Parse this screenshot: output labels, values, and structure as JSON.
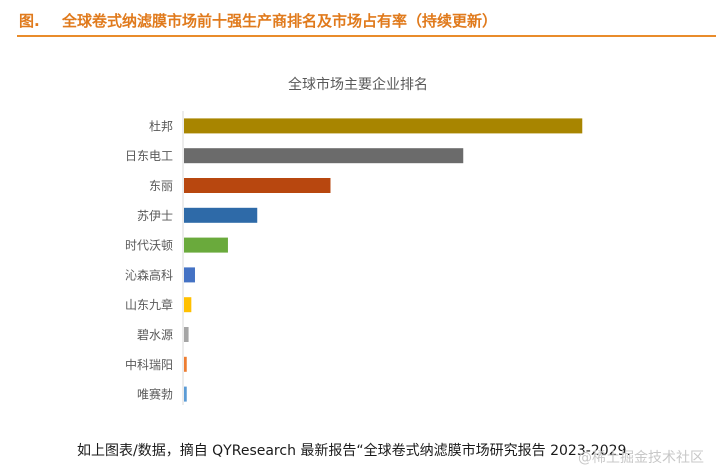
{
  "header": {
    "prefix": "图.",
    "title": "全球卷式纳滤膜市场前十强生产商排名及市场占有率（持续更新）"
  },
  "chart_data": {
    "type": "bar",
    "orientation": "horizontal",
    "title": "全球市场主要企业排名",
    "categories": [
      "杜邦",
      "日东电工",
      "东丽",
      "苏伊士",
      "时代沃顿",
      "沁森高科",
      "山东九章",
      "碧水源",
      "中科瑞阳",
      "唯赛勃"
    ],
    "values": [
      43.5,
      30.5,
      16.0,
      8.0,
      4.8,
      1.2,
      0.8,
      0.5,
      0.3,
      0.3
    ],
    "colors": [
      "#a88500",
      "#6b6b6b",
      "#b8470f",
      "#2e6aa8",
      "#6aaa3c",
      "#4472c4",
      "#ffc000",
      "#a5a5a5",
      "#ed7d31",
      "#5b9bd5"
    ],
    "xlim": [
      0,
      45
    ],
    "xlabel": "",
    "ylabel": "",
    "grid": false,
    "legend": "none"
  },
  "footer": {
    "text": "如上图表/数据，摘自 QYResearch 最新报告“全球卷式纳滤膜市场研究报告 2023-2029."
  },
  "watermark": {
    "text": "@稀土掘金技术社区"
  }
}
